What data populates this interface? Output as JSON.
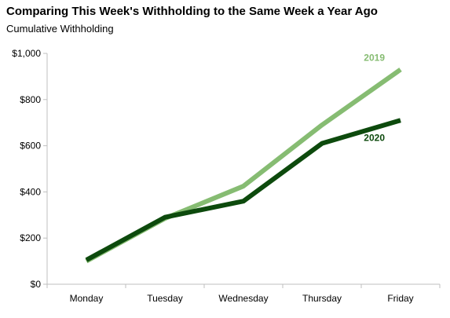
{
  "chart_data": {
    "type": "line",
    "title": "Comparing This Week's Withholding to the Same Week a Year Ago",
    "subtitle": "Cumulative Withholding",
    "categories": [
      "Monday",
      "Tuesday",
      "Wednesday",
      "Thursday",
      "Friday"
    ],
    "ylim": [
      0,
      1000
    ],
    "yticks": [
      0,
      200,
      400,
      600,
      800,
      1000
    ],
    "ytick_labels": [
      "$0",
      "$200",
      "$400",
      "$600",
      "$800",
      "$1,000"
    ],
    "grid": false,
    "series": [
      {
        "name": "2019",
        "values": [
          100,
          285,
          425,
          690,
          930
        ],
        "color": "#86bc72"
      },
      {
        "name": "2020",
        "values": [
          105,
          290,
          360,
          610,
          710
        ],
        "color": "#0d4a0d"
      }
    ]
  }
}
